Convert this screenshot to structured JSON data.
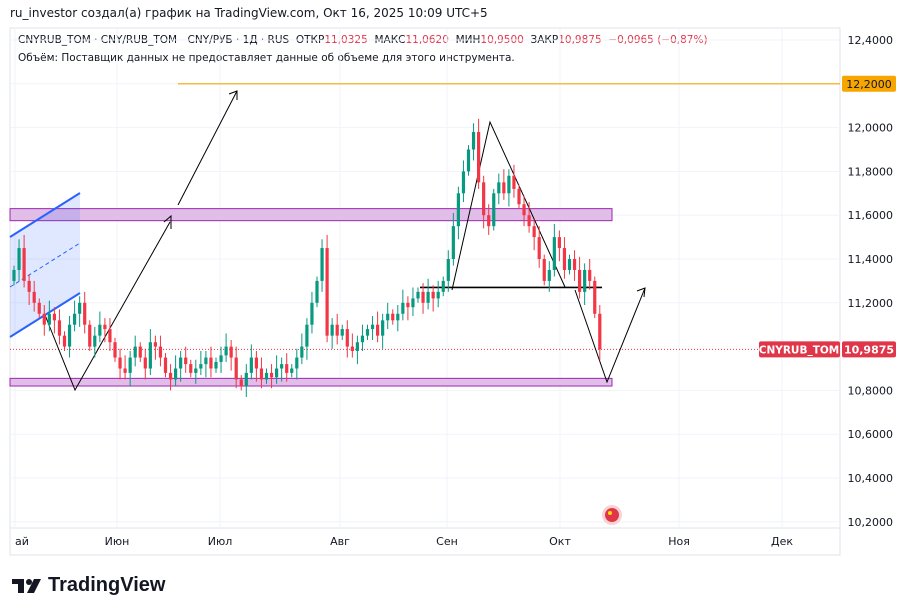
{
  "caption": "ru_investor создал(а) график на TradingView.com, Окт 16, 2025 10:09 UTC+5",
  "legend": {
    "symbol": "CNYRUB_TOM · CNY/RUB_TOM - CNY/РУБ · 1Д · RUS",
    "open_label": "ОТКР",
    "open": "11,0325",
    "high_label": "МАКС",
    "high": "11,0620",
    "low_label": "МИН",
    "low": "10,9500",
    "close_label": "ЗАКР",
    "close": "10,9875",
    "change": "−0,0965 (−0,87%)"
  },
  "volume_note": "Объём: Поставщик данных не предоставляет данные об объеме для этого инструмента.",
  "colors": {
    "up": "#089981",
    "down": "#f23645",
    "level": "#f7a600",
    "zone": "#9c27b0",
    "channel": "#2962ff"
  },
  "price_badges": {
    "level": "12,2000",
    "symbol": "CNYRUB_TOM",
    "last": "10,9875"
  },
  "logo": "TradingView",
  "chart_data": {
    "type": "candlestick",
    "yticks": [
      "12,4000",
      "12,2000",
      "12,0000",
      "11,8000",
      "11,6000",
      "11,4000",
      "11,2000",
      "10,8000",
      "10,6000",
      "10,4000",
      "10,2000"
    ],
    "ytick_values": [
      12.4,
      12.2,
      12.0,
      11.8,
      11.6,
      11.4,
      11.2,
      10.8,
      10.6,
      10.4,
      10.2
    ],
    "ylim": [
      10.16,
      12.5
    ],
    "xticks": [
      "ай",
      "Июн",
      "Июл",
      "Авг",
      "Сен",
      "Окт",
      "Ноя",
      "Дек"
    ],
    "grid": true,
    "closes": [
      11.35,
      11.45,
      11.3,
      11.25,
      11.2,
      11.15,
      11.1,
      11.15,
      11.12,
      11.05,
      11.0,
      11.1,
      11.15,
      11.2,
      11.1,
      11.0,
      11.05,
      11.1,
      11.08,
      11.02,
      10.95,
      10.9,
      10.88,
      10.95,
      11.0,
      10.95,
      10.9,
      11.02,
      11.0,
      10.95,
      10.88,
      10.85,
      10.9,
      10.95,
      10.92,
      10.88,
      10.9,
      10.92,
      10.95,
      10.9,
      10.93,
      10.96,
      11.0,
      10.95,
      10.85,
      10.82,
      10.88,
      10.95,
      10.9,
      10.85,
      10.88,
      10.86,
      10.9,
      10.92,
      10.88,
      10.9,
      10.95,
      11.0,
      11.1,
      11.2,
      11.3,
      11.45,
      11.05,
      11.1,
      11.05,
      11.08,
      11.0,
      10.98,
      11.02,
      11.05,
      11.08,
      11.1,
      11.05,
      11.12,
      11.15,
      11.12,
      11.15,
      11.2,
      11.18,
      11.22,
      11.25,
      11.2,
      11.25,
      11.22,
      11.25,
      11.3,
      11.4,
      11.55,
      11.7,
      11.8,
      11.9,
      11.98,
      11.75,
      11.6,
      11.55,
      11.7,
      11.75,
      11.7,
      11.78,
      11.72,
      11.65,
      11.6,
      11.55,
      11.5,
      11.4,
      11.3,
      11.35,
      11.5,
      11.45,
      11.35,
      11.4,
      11.35,
      11.25,
      11.35,
      11.3,
      11.15,
      10.9875
    ],
    "annotations": {
      "level": 12.2,
      "resistance_zone": [
        11.575,
        11.63
      ],
      "support_zone": [
        10.82,
        10.855
      ],
      "neckline": 11.27,
      "last_price": 10.9875
    }
  }
}
